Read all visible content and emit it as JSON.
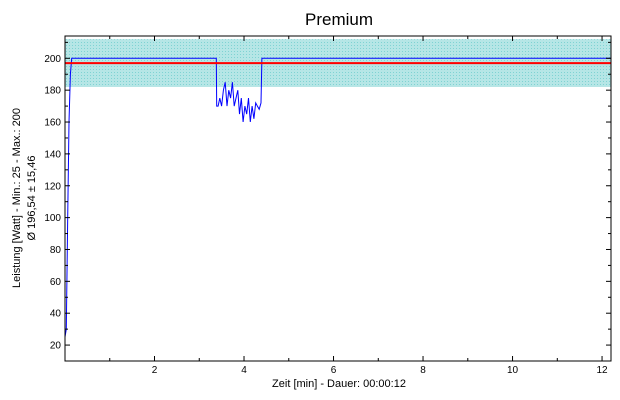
{
  "chart_data": {
    "type": "line",
    "title": "Premium",
    "xlabel": "Zeit [min] - Dauer: 00:00:12",
    "ylabel_line1": "Leistung [Watt] - Min.: 25 - Max.: 200",
    "ylabel_line2": "Ø 196,54 ± 15,46",
    "xlim": [
      0,
      12.2
    ],
    "ylim": [
      10,
      214
    ],
    "x_ticks": [
      2,
      4,
      6,
      8,
      10,
      12
    ],
    "y_ticks": [
      20,
      40,
      60,
      80,
      100,
      120,
      140,
      160,
      180,
      200
    ],
    "grid": false,
    "band": {
      "low": 182,
      "high": 212,
      "color": "#7fd3d3"
    },
    "mean": {
      "value": 197,
      "color": "#ff0000"
    },
    "series": [
      {
        "color": "#0000ff",
        "x": [
          0.0,
          0.03,
          0.06,
          0.09,
          0.12,
          0.15,
          0.2,
          3.38,
          3.39,
          3.42,
          3.46,
          3.5,
          3.54,
          3.58,
          3.62,
          3.66,
          3.7,
          3.74,
          3.78,
          3.82,
          3.86,
          3.9,
          3.94,
          3.98,
          4.02,
          4.06,
          4.1,
          4.14,
          4.18,
          4.22,
          4.26,
          4.3,
          4.34,
          4.38,
          4.4,
          4.45,
          12.2
        ],
        "y": [
          25,
          30,
          100,
          160,
          190,
          200,
          200,
          200,
          170,
          170,
          175,
          170,
          180,
          185,
          170,
          180,
          175,
          185,
          170,
          175,
          180,
          165,
          175,
          160,
          170,
          165,
          175,
          160,
          170,
          162,
          172,
          170,
          168,
          172,
          200,
          200,
          200
        ]
      }
    ]
  }
}
